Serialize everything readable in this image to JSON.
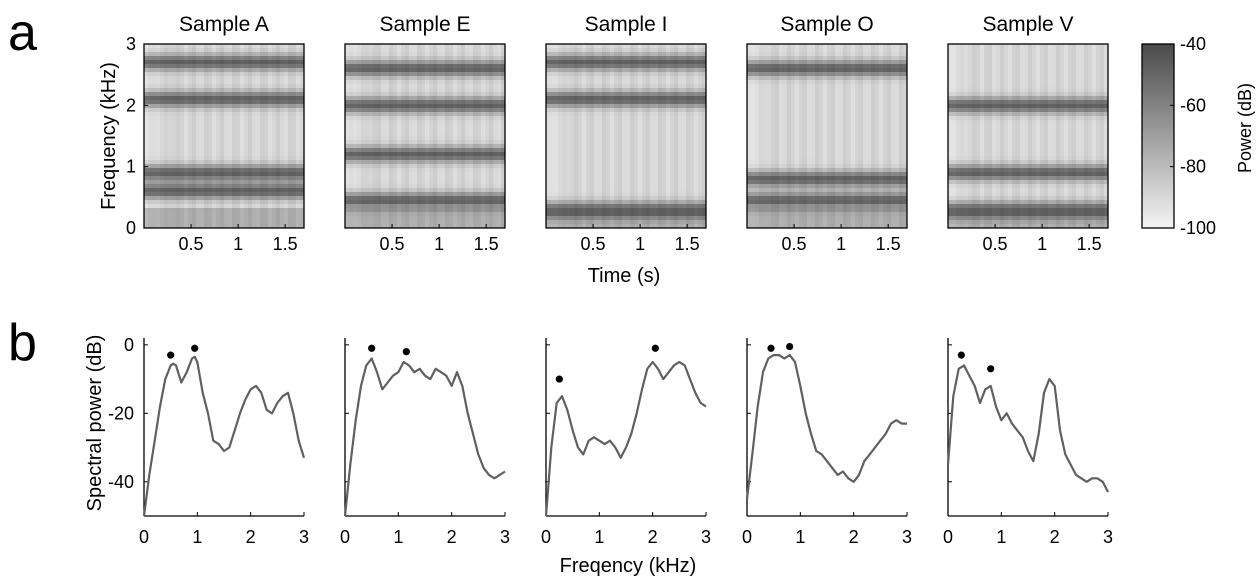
{
  "panel_labels": {
    "a": "a",
    "b": "b"
  },
  "chart_data": [
    {
      "type": "heatmap",
      "panel": "a",
      "titles": [
        "Sample A",
        "Sample E",
        "Sample I",
        "Sample O",
        "Sample V"
      ],
      "xlabel": "Time (s)",
      "ylabel": "Frequency (kHz)",
      "xlim": [
        0,
        1.7
      ],
      "ylim": [
        0,
        3
      ],
      "xticks": [
        0.5,
        1,
        1.5
      ],
      "xtick_labels": [
        "0.5",
        "1",
        "1.5"
      ],
      "yticks": [
        0,
        1,
        2,
        3
      ],
      "ytick_labels": [
        "0",
        "1",
        "2",
        "3"
      ],
      "colorbar": {
        "label": "Power (dB)",
        "range": [
          -100,
          -40
        ],
        "ticks": [
          -40,
          -60,
          -80,
          -100
        ],
        "tick_labels": [
          "-40",
          "-60",
          "-80",
          "-100"
        ],
        "color_high": "#4a4a4a",
        "color_low": "#f4f4f4"
      },
      "formant_bands_khz": [
        [
          0.6,
          0.9,
          2.1,
          2.7
        ],
        [
          0.45,
          1.2,
          2.0,
          2.6
        ],
        [
          0.3,
          2.1,
          2.7
        ],
        [
          0.45,
          0.8,
          2.6
        ],
        [
          0.3,
          0.9,
          2.0
        ]
      ]
    },
    {
      "type": "line",
      "panel": "b",
      "xlabel": "Freqency (kHz)",
      "ylabel": "Spectral power (dB)",
      "xlim": [
        0,
        3
      ],
      "ylim": [
        -50,
        2
      ],
      "xticks": [
        0,
        1,
        2,
        3
      ],
      "xtick_labels": [
        "0",
        "1",
        "2",
        "3"
      ],
      "yticks": [
        0,
        -20,
        -40
      ],
      "ytick_labels": [
        "0",
        "-20",
        "-40"
      ],
      "line_color": "#606060",
      "series": [
        {
          "x": [
            0,
            0.1,
            0.2,
            0.3,
            0.4,
            0.5,
            0.55,
            0.6,
            0.7,
            0.8,
            0.9,
            0.95,
            1.0,
            1.1,
            1.2,
            1.3,
            1.4,
            1.5,
            1.6,
            1.7,
            1.8,
            1.9,
            2.0,
            2.1,
            2.2,
            2.3,
            2.4,
            2.5,
            2.6,
            2.7,
            2.8,
            2.9,
            3.0
          ],
          "y": [
            -50,
            -38,
            -28,
            -18,
            -10,
            -6,
            -5.5,
            -6,
            -11,
            -8,
            -4,
            -3.5,
            -5,
            -14,
            -20,
            -28,
            -29,
            -31,
            -30,
            -25,
            -20,
            -16,
            -13,
            -12,
            -14,
            -19,
            -20,
            -17,
            -15,
            -14,
            -20,
            -28,
            -33
          ],
          "peaks": [
            {
              "x": 0.5,
              "y": -3
            },
            {
              "x": 0.95,
              "y": -1
            }
          ]
        },
        {
          "x": [
            0,
            0.1,
            0.2,
            0.3,
            0.4,
            0.5,
            0.6,
            0.7,
            0.8,
            0.9,
            1.0,
            1.1,
            1.2,
            1.3,
            1.4,
            1.5,
            1.6,
            1.7,
            1.8,
            1.9,
            2.0,
            2.1,
            2.2,
            2.3,
            2.4,
            2.5,
            2.6,
            2.7,
            2.8,
            2.9,
            3.0
          ],
          "y": [
            -50,
            -35,
            -22,
            -12,
            -6,
            -4,
            -8,
            -13,
            -11,
            -9,
            -8,
            -5,
            -6,
            -8,
            -7,
            -9,
            -10,
            -7,
            -8,
            -9,
            -12,
            -8,
            -12,
            -20,
            -26,
            -32,
            -36,
            -38,
            -39,
            -38,
            -37
          ],
          "peaks": [
            {
              "x": 0.5,
              "y": -1
            },
            {
              "x": 1.15,
              "y": -2
            }
          ]
        },
        {
          "x": [
            0,
            0.1,
            0.2,
            0.3,
            0.4,
            0.5,
            0.6,
            0.7,
            0.8,
            0.9,
            1.0,
            1.1,
            1.2,
            1.3,
            1.4,
            1.5,
            1.6,
            1.7,
            1.8,
            1.9,
            2.0,
            2.1,
            2.2,
            2.3,
            2.4,
            2.5,
            2.6,
            2.7,
            2.8,
            2.9,
            3.0
          ],
          "y": [
            -50,
            -30,
            -17,
            -15,
            -19,
            -25,
            -30,
            -32,
            -28,
            -27,
            -28,
            -29,
            -28,
            -30,
            -33,
            -30,
            -26,
            -20,
            -13,
            -7,
            -5,
            -7,
            -10,
            -8,
            -6,
            -5,
            -6,
            -10,
            -14,
            -17,
            -18
          ],
          "peaks": [
            {
              "x": 0.25,
              "y": -10
            },
            {
              "x": 2.05,
              "y": -1
            }
          ]
        },
        {
          "x": [
            0,
            0.1,
            0.2,
            0.3,
            0.4,
            0.5,
            0.6,
            0.7,
            0.8,
            0.9,
            1.0,
            1.1,
            1.2,
            1.3,
            1.4,
            1.5,
            1.6,
            1.7,
            1.8,
            1.9,
            2.0,
            2.1,
            2.2,
            2.3,
            2.4,
            2.5,
            2.6,
            2.7,
            2.8,
            2.9,
            3.0
          ],
          "y": [
            -45,
            -32,
            -18,
            -8,
            -4,
            -3,
            -3,
            -4,
            -3,
            -5,
            -12,
            -20,
            -26,
            -31,
            -32,
            -34,
            -36,
            -38,
            -37,
            -39,
            -40,
            -38,
            -34,
            -32,
            -30,
            -28,
            -26,
            -23,
            -22,
            -23,
            -23
          ],
          "peaks": [
            {
              "x": 0.45,
              "y": -1
            },
            {
              "x": 0.8,
              "y": -0.5
            }
          ]
        },
        {
          "x": [
            0,
            0.1,
            0.2,
            0.3,
            0.4,
            0.5,
            0.6,
            0.7,
            0.8,
            0.9,
            1.0,
            1.1,
            1.2,
            1.3,
            1.4,
            1.5,
            1.6,
            1.7,
            1.8,
            1.9,
            2.0,
            2.1,
            2.2,
            2.3,
            2.4,
            2.5,
            2.6,
            2.7,
            2.8,
            2.9,
            3.0
          ],
          "y": [
            -35,
            -15,
            -7,
            -6,
            -9,
            -12,
            -17,
            -13,
            -12,
            -18,
            -22,
            -20,
            -23,
            -25,
            -27,
            -31,
            -34,
            -26,
            -14,
            -10,
            -12,
            -25,
            -32,
            -35,
            -38,
            -39,
            -40,
            -39,
            -39,
            -40,
            -43
          ],
          "peaks": [
            {
              "x": 0.25,
              "y": -3
            },
            {
              "x": 0.8,
              "y": -7
            }
          ]
        }
      ]
    }
  ]
}
